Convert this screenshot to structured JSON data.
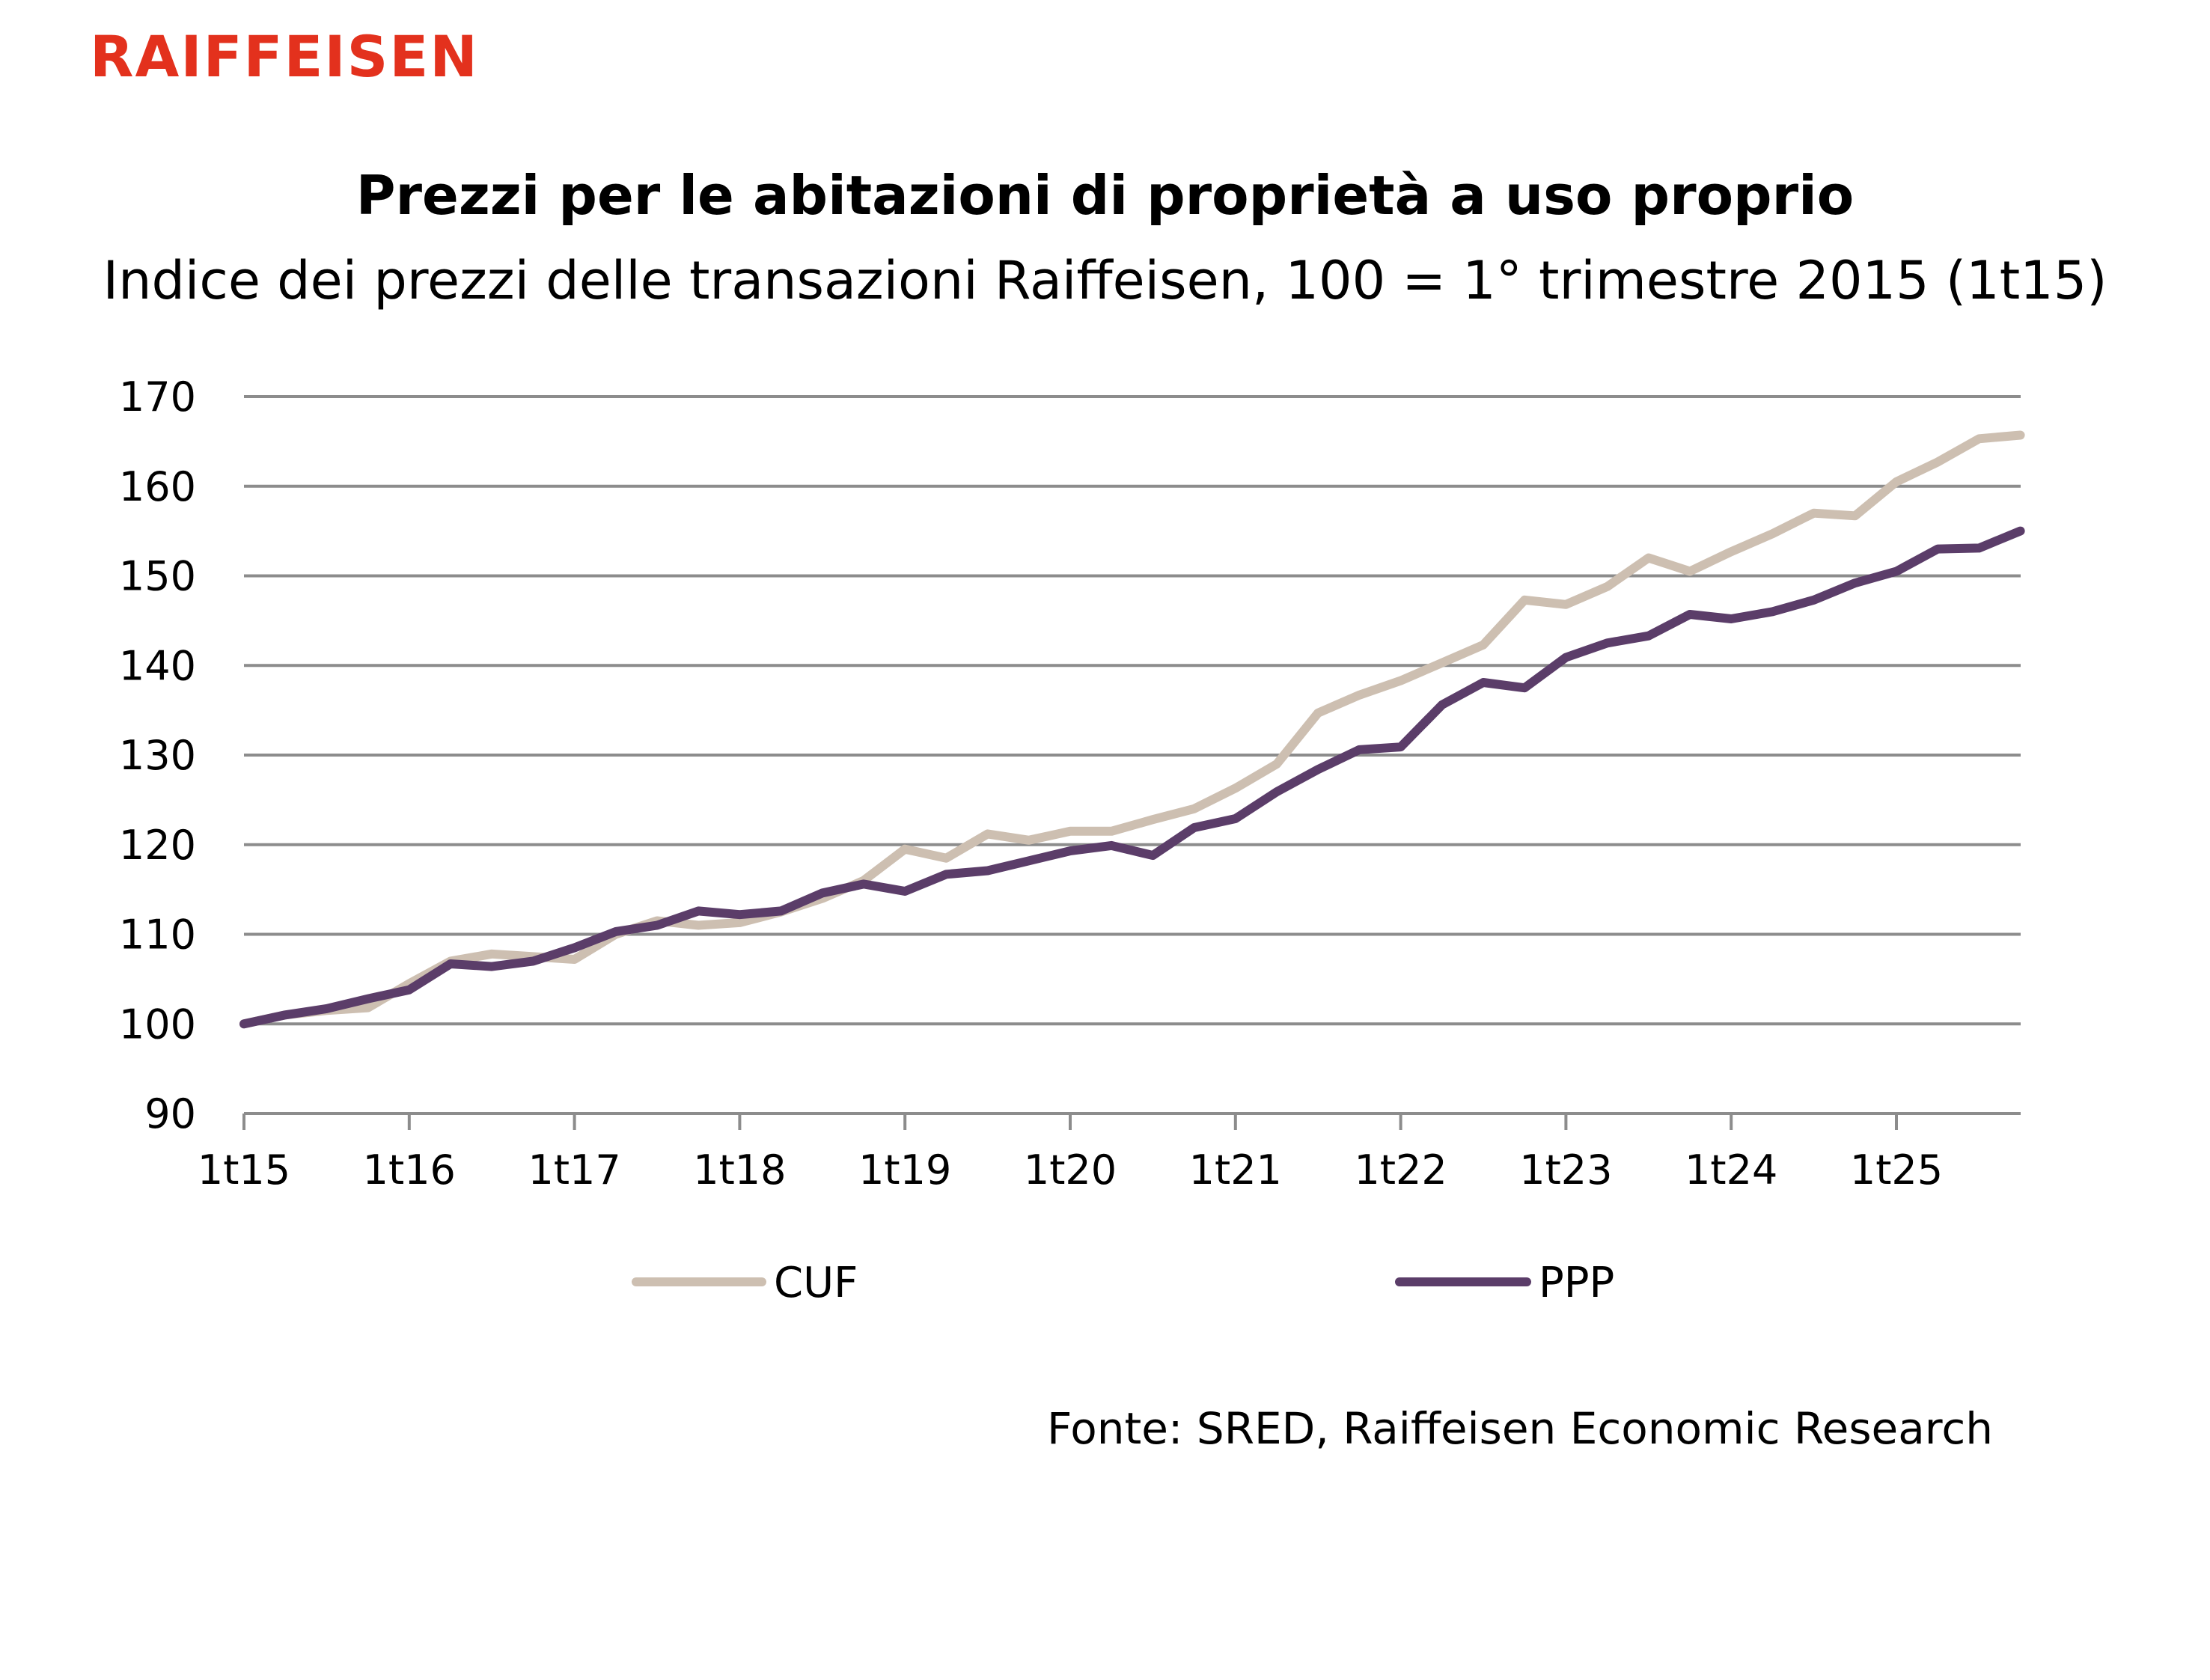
{
  "brand": "RAIFFEISEN",
  "title": "Prezzi per le abitazioni di proprietà a uso proprio",
  "subtitle": "Indice dei prezzi delle transazioni Raiffeisen, 100 = 1° trimestre 2015 (1t15)",
  "source": "Fonte: SRED, Raiffeisen Economic Research",
  "colors": {
    "brand": "#e3311d",
    "cuf": "#cdbfb1",
    "ppp": "#5b3d69",
    "grid": "#8c8c8c"
  },
  "chart_data": {
    "type": "line",
    "ylim": [
      90,
      170
    ],
    "yticks": [
      90,
      100,
      110,
      120,
      130,
      140,
      150,
      160,
      170
    ],
    "xtick_labels": [
      "1t15",
      "1t16",
      "1t17",
      "1t18",
      "1t19",
      "1t20",
      "1t21",
      "1t22",
      "1t23",
      "1t24",
      "1t25"
    ],
    "grid": true,
    "legend_position": "bottom",
    "x": [
      "1t15",
      "2t15",
      "3t15",
      "4t15",
      "1t16",
      "2t16",
      "3t16",
      "4t16",
      "1t17",
      "2t17",
      "3t17",
      "4t17",
      "1t18",
      "2t18",
      "3t18",
      "4t18",
      "1t19",
      "2t19",
      "3t19",
      "4t19",
      "1t20",
      "2t20",
      "3t20",
      "4t20",
      "1t21",
      "2t21",
      "3t21",
      "4t21",
      "1t22",
      "2t22",
      "3t22",
      "4t22",
      "1t23",
      "2t23",
      "3t23",
      "4t23",
      "1t24",
      "2t24",
      "3t24",
      "4t24",
      "1t25",
      "2t25",
      "3t25",
      "4t25"
    ],
    "series": [
      {
        "name": "CUF",
        "color": "#cdbfb1",
        "values": [
          100,
          101,
          101.5,
          101.8,
          104.5,
          107,
          107.8,
          107.5,
          107.2,
          110,
          111.5,
          111,
          111.3,
          112.5,
          114,
          116,
          119.5,
          118.5,
          121.2,
          120.5,
          121.5,
          121.5,
          122.8,
          124,
          126.3,
          129,
          134.7,
          136.7,
          138.3,
          140.3,
          142.3,
          147.3,
          146.8,
          148.8,
          152,
          150.5,
          152.7,
          154.7,
          157,
          156.7,
          160.5,
          162.7,
          165.3,
          165.7
        ]
      },
      {
        "name": "PPP",
        "color": "#5b3d69",
        "values": [
          100,
          101,
          101.7,
          102.8,
          103.8,
          106.7,
          106.4,
          107,
          108.5,
          110.3,
          111,
          112.6,
          112.2,
          112.6,
          114.6,
          115.6,
          114.8,
          116.7,
          117.1,
          118.2,
          119.3,
          119.9,
          118.8,
          121.9,
          122.9,
          125.9,
          128.4,
          130.6,
          130.9,
          135.6,
          138.1,
          137.5,
          140.9,
          142.5,
          143.3,
          145.7,
          145.2,
          146,
          147.3,
          149.2,
          150.5,
          153,
          153.1,
          155
        ]
      }
    ]
  }
}
